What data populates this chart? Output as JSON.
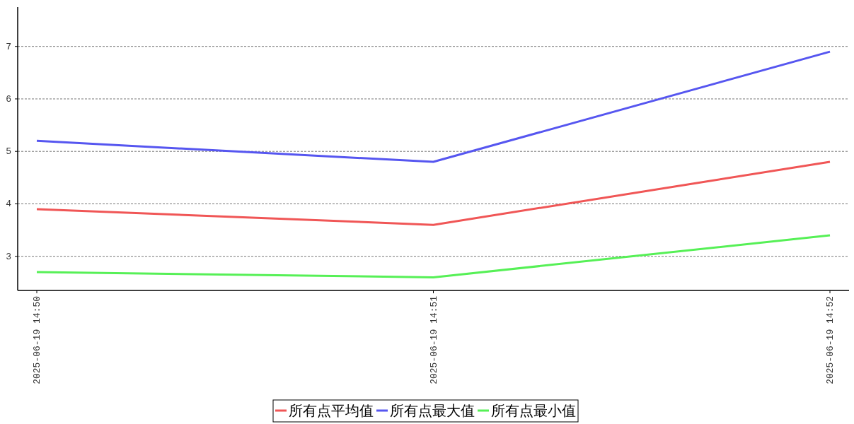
{
  "chart_data": {
    "type": "line",
    "categories": [
      "2025-06-19 14:50",
      "2025-06-19 14:51",
      "2025-06-19 14:52"
    ],
    "series": [
      {
        "name": "所有点平均值",
        "color": "#f05656",
        "values": [
          3.9,
          3.6,
          4.8
        ]
      },
      {
        "name": "所有点最大值",
        "color": "#5656f0",
        "values": [
          5.2,
          4.8,
          6.9
        ]
      },
      {
        "name": "所有点最小值",
        "color": "#56f056",
        "values": [
          2.7,
          2.6,
          3.4
        ]
      }
    ],
    "ylim": [
      2.35,
      7.75
    ],
    "yticks": [
      3,
      4,
      5,
      6,
      7
    ],
    "grid": "y",
    "legend": "bottom"
  }
}
